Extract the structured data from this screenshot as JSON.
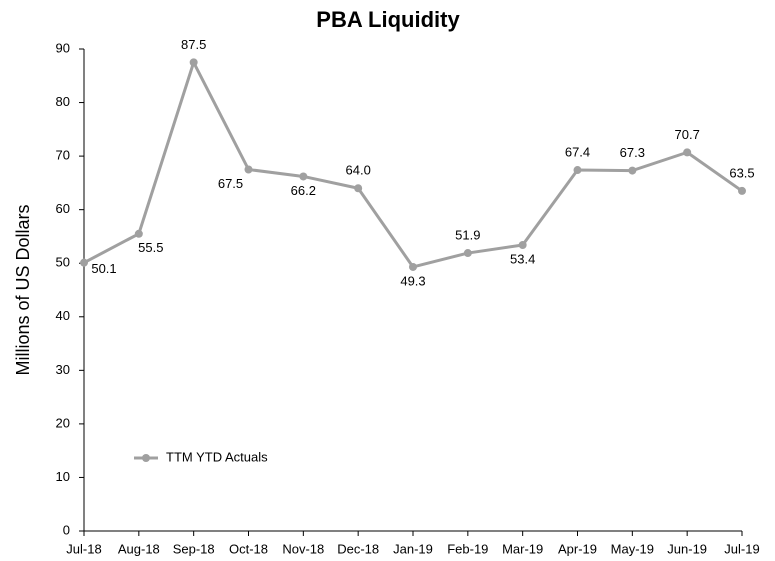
{
  "chart_data": {
    "type": "line",
    "title": "PBA Liquidity",
    "y_label": "Millions of US Dollars",
    "categories": [
      "Jul-18",
      "Aug-18",
      "Sep-18",
      "Oct-18",
      "Nov-18",
      "Dec-18",
      "Jan-19",
      "Feb-19",
      "Mar-19",
      "Apr-19",
      "May-19",
      "Jun-19",
      "Jul-19"
    ],
    "series": [
      {
        "name": "TTM YTD Actuals",
        "color": "#a0a0a0",
        "values": [
          50.1,
          55.5,
          87.5,
          67.5,
          66.2,
          64,
          49.3,
          51.9,
          53.4,
          67.4,
          67.3,
          70.7,
          63.5
        ],
        "value_labels": [
          "50.1",
          "55.5",
          "87.5",
          "67.5",
          "66.2",
          "64.0",
          "49.3",
          "51.9",
          "53.4",
          "67.4",
          "67.3",
          "70.7",
          "63.5"
        ]
      }
    ],
    "ylim": [
      0,
      90
    ],
    "yticks": [
      0,
      10,
      20,
      30,
      40,
      50,
      60,
      70,
      80,
      90
    ],
    "grid": false,
    "legend": "lower left"
  }
}
